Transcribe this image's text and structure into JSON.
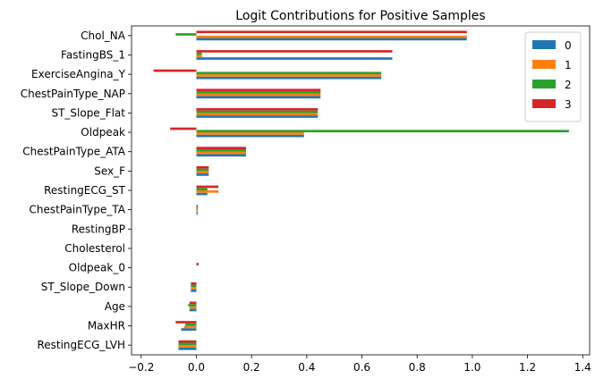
{
  "chart_data": {
    "type": "bar",
    "orientation": "horizontal",
    "title": "Logit Contributions for Positive Samples",
    "xlabel": "",
    "ylabel": "",
    "xlim": [
      -0.235,
      1.425
    ],
    "xticks": [
      -0.2,
      0.0,
      0.2,
      0.4,
      0.6,
      0.8,
      1.0,
      1.2,
      1.4
    ],
    "xtick_labels": [
      "−0.2",
      "0.0",
      "0.2",
      "0.4",
      "0.6",
      "0.8",
      "1.0",
      "1.2",
      "1.4"
    ],
    "grid": false,
    "legend_position": "top-right",
    "categories": [
      "Chol_NA",
      "FastingBS_1",
      "ExerciseAngina_Y",
      "ChestPainType_NAP",
      "ST_Slope_Flat",
      "Oldpeak",
      "ChestPainType_ATA",
      "Sex_F",
      "RestingECG_ST",
      "ChestPainType_TA",
      "RestingBP",
      "Cholesterol",
      "Oldpeak_0",
      "ST_Slope_Down",
      "Age",
      "MaxHR",
      "RestingECG_LVH"
    ],
    "series": [
      {
        "name": "0",
        "color": "#1f77b4",
        "values": [
          0.98,
          0.71,
          0.67,
          0.45,
          0.44,
          0.39,
          0.18,
          0.045,
          0.04,
          0.005,
          0.0,
          0.0,
          0.0,
          -0.02,
          -0.025,
          -0.055,
          -0.065
        ]
      },
      {
        "name": "1",
        "color": "#ff7f0e",
        "values": [
          0.98,
          0.02,
          0.67,
          0.45,
          0.44,
          0.39,
          0.18,
          0.045,
          0.08,
          0.005,
          0.0,
          0.0,
          0.0,
          -0.02,
          -0.025,
          -0.045,
          -0.065
        ]
      },
      {
        "name": "2",
        "color": "#2ca02c",
        "values": [
          -0.075,
          0.02,
          0.67,
          0.45,
          0.44,
          1.35,
          0.18,
          0.045,
          0.04,
          0.005,
          0.0,
          0.0,
          0.0,
          -0.02,
          -0.03,
          -0.04,
          -0.065
        ]
      },
      {
        "name": "3",
        "color": "#d62728",
        "values": [
          0.98,
          0.71,
          -0.155,
          0.45,
          0.44,
          -0.095,
          0.18,
          0.045,
          0.08,
          0.005,
          0.0,
          0.0,
          0.008,
          -0.02,
          -0.025,
          -0.075,
          -0.065
        ]
      }
    ]
  }
}
